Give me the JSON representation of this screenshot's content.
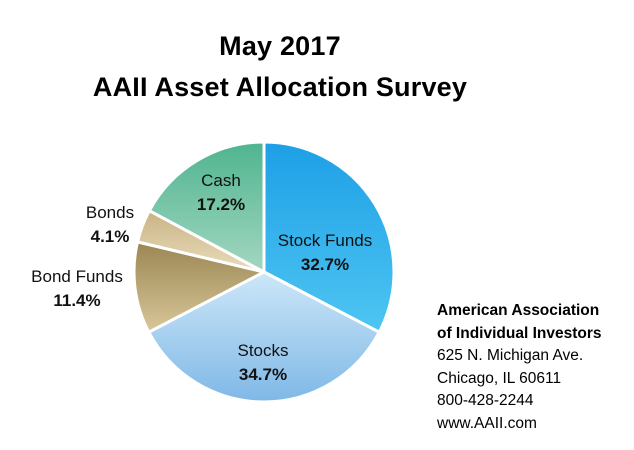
{
  "title_line1": "May 2017",
  "title_line2": "AAII Asset Allocation Survey",
  "org": {
    "name_line1": "American Association",
    "name_line2": "of Individual Investors",
    "address1": "625 N. Michigan Ave.",
    "address2": "Chicago, IL 60611",
    "phone": "800-428-2244",
    "website": "www.AAII.com"
  },
  "chart_data": {
    "type": "pie",
    "title": "May 2017 AAII Asset Allocation Survey",
    "slices": [
      {
        "name": "Stock Funds",
        "value": 32.7,
        "label": "32.7%",
        "color_top": "#1e9fe6",
        "color_bottom": "#4ec6f2"
      },
      {
        "name": "Stocks",
        "value": 34.7,
        "label": "34.7%",
        "color_top": "#cde7f8",
        "color_bottom": "#7fb8e6"
      },
      {
        "name": "Bond Funds",
        "value": 11.4,
        "label": "11.4%",
        "color_top": "#9b8653",
        "color_bottom": "#d8c79a"
      },
      {
        "name": "Bonds",
        "value": 4.1,
        "label": "4.1%",
        "color_top": "#c9b384",
        "color_bottom": "#e9dcbc"
      },
      {
        "name": "Cash",
        "value": 17.2,
        "label": "17.2%",
        "color_top": "#4fb48f",
        "color_bottom": "#a3d7c1"
      }
    ]
  }
}
